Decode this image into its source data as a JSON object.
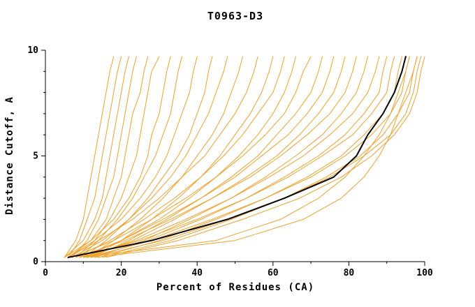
{
  "chart_data": {
    "type": "line",
    "title": "T0963-D3",
    "xlabel": "Percent of Residues (CA)",
    "ylabel": "Distance Cutoff, A",
    "xlim": [
      0,
      100
    ],
    "ylim": [
      0,
      10
    ],
    "xticks_major": [
      0,
      20,
      40,
      60,
      80,
      100
    ],
    "xticks_minor": [
      10,
      30,
      50,
      70,
      90
    ],
    "yticks_major": [
      0,
      5,
      10
    ],
    "yticks_minor": [
      1,
      2,
      3,
      4,
      6,
      7,
      8,
      9
    ],
    "grid": false,
    "legend": "none",
    "colors": {
      "model_lines": "#f0a028",
      "highlight_line": "#000000",
      "axis": "#000000",
      "background": "#ffffff"
    },
    "y_levels": [
      0.2,
      1,
      2,
      3,
      4,
      5,
      6,
      7,
      8,
      9,
      9.7
    ],
    "series": [
      {
        "name": "model-curves",
        "color": "#f0a028",
        "width": 1,
        "curves": [
          [
            5,
            8,
            10,
            11,
            12,
            13,
            14,
            15,
            16,
            17,
            18
          ],
          [
            6,
            9,
            11,
            13,
            14,
            15,
            16,
            17,
            18,
            19,
            20
          ],
          [
            5,
            10,
            13,
            15,
            16,
            17,
            18,
            19,
            20,
            21,
            22
          ],
          [
            7,
            11,
            14,
            16,
            18,
            19,
            20,
            21,
            22,
            23,
            24
          ],
          [
            6,
            12,
            16,
            18,
            20,
            21,
            22,
            23,
            25,
            26,
            27
          ],
          [
            8,
            13,
            17,
            20,
            22,
            24,
            25,
            26,
            27,
            28,
            30
          ],
          [
            5,
            12,
            18,
            22,
            25,
            27,
            28,
            30,
            31,
            32,
            33
          ],
          [
            9,
            14,
            19,
            23,
            26,
            29,
            31,
            33,
            34,
            35,
            36
          ],
          [
            6,
            13,
            20,
            25,
            29,
            32,
            34,
            36,
            38,
            39,
            40
          ],
          [
            10,
            16,
            22,
            27,
            31,
            35,
            38,
            40,
            42,
            43,
            44
          ],
          [
            7,
            15,
            22,
            28,
            33,
            37,
            40,
            43,
            45,
            47,
            48
          ],
          [
            11,
            18,
            25,
            31,
            36,
            40,
            44,
            47,
            49,
            51,
            52
          ],
          [
            6,
            14,
            23,
            30,
            36,
            42,
            46,
            50,
            53,
            55,
            56
          ],
          [
            12,
            20,
            28,
            35,
            41,
            46,
            50,
            54,
            57,
            59,
            60
          ],
          [
            8,
            17,
            26,
            34,
            41,
            47,
            52,
            56,
            60,
            62,
            63
          ],
          [
            10,
            20,
            30,
            38,
            45,
            51,
            56,
            60,
            63,
            65,
            66
          ],
          [
            7,
            18,
            28,
            37,
            45,
            52,
            58,
            63,
            66,
            68,
            70
          ],
          [
            12,
            22,
            32,
            41,
            49,
            56,
            61,
            66,
            70,
            72,
            73
          ],
          [
            9,
            20,
            31,
            41,
            50,
            57,
            64,
            69,
            73,
            75,
            76
          ],
          [
            11,
            23,
            34,
            44,
            53,
            61,
            67,
            72,
            76,
            78,
            79
          ],
          [
            8,
            21,
            33,
            44,
            54,
            62,
            69,
            75,
            79,
            81,
            82
          ],
          [
            13,
            26,
            38,
            49,
            58,
            66,
            73,
            78,
            82,
            84,
            85
          ],
          [
            10,
            24,
            37,
            49,
            59,
            68,
            75,
            81,
            85,
            87,
            88
          ],
          [
            12,
            27,
            41,
            53,
            63,
            72,
            79,
            84,
            88,
            89,
            90
          ],
          [
            9,
            25,
            40,
            53,
            64,
            73,
            81,
            86,
            90,
            91,
            92
          ],
          [
            14,
            30,
            45,
            58,
            69,
            78,
            84,
            89,
            92,
            93,
            94
          ],
          [
            11,
            28,
            44,
            58,
            70,
            79,
            86,
            91,
            94,
            95,
            96
          ],
          [
            15,
            33,
            49,
            63,
            74,
            83,
            89,
            93,
            96,
            97,
            98
          ],
          [
            12,
            31,
            48,
            63,
            75,
            84,
            91,
            95,
            97,
            98,
            99
          ],
          [
            16,
            35,
            52,
            67,
            78,
            86,
            92,
            96,
            98,
            99,
            100
          ],
          [
            10,
            45,
            62,
            72,
            79,
            84,
            88,
            91,
            93,
            95,
            96
          ],
          [
            13,
            50,
            68,
            78,
            84,
            88,
            91,
            93,
            95,
            97,
            98
          ]
        ]
      },
      {
        "name": "highlight-curve",
        "color": "#000000",
        "width": 2,
        "curves": [
          [
            6,
            28,
            48,
            63,
            76,
            82,
            85,
            89,
            92,
            94,
            95
          ]
        ]
      }
    ]
  }
}
